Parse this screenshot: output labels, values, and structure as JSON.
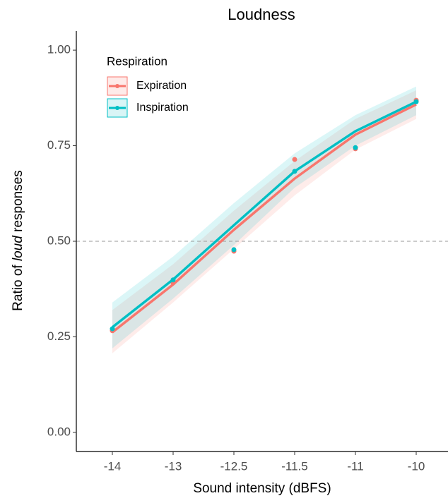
{
  "chart_data": {
    "type": "line",
    "title": "Loudness",
    "xlabel": "Sound intensity (dBFS)",
    "ylabel": [
      "Ratio of ",
      "loud",
      " responses"
    ],
    "categories": [
      "-14",
      "-13",
      "-12.5",
      "-11.5",
      "-11",
      "-10"
    ],
    "ylim": [
      -0.05,
      1.05
    ],
    "yticks": [
      {
        "value": 0,
        "label": "0.00"
      },
      {
        "value": 0.25,
        "label": "0.25"
      },
      {
        "value": 0.5,
        "label": "0.50"
      },
      {
        "value": 0.75,
        "label": "0.75"
      },
      {
        "value": 1,
        "label": "1.00"
      }
    ],
    "hline": 0.5,
    "legend_title": "Respiration",
    "legend": "top-left",
    "series": [
      {
        "name": "Expiration",
        "color": "#F8766D",
        "points": [
          0.266,
          0.391,
          0.474,
          0.714,
          0.742,
          0.869
        ],
        "fit": [
          0.262,
          0.387,
          0.53,
          0.664,
          0.779,
          0.858
        ],
        "lower": [
          0.207,
          0.34,
          0.48,
          0.62,
          0.74,
          0.82
        ],
        "upper": [
          0.32,
          0.44,
          0.58,
          0.71,
          0.82,
          0.895
        ]
      },
      {
        "name": "Inspiration",
        "color": "#00BFC4",
        "points": [
          0.271,
          0.399,
          0.478,
          0.683,
          0.745,
          0.865
        ],
        "fit": [
          0.275,
          0.4,
          0.542,
          0.683,
          0.788,
          0.865
        ],
        "lower": [
          0.22,
          0.35,
          0.49,
          0.64,
          0.75,
          0.83
        ],
        "upper": [
          0.34,
          0.46,
          0.6,
          0.73,
          0.83,
          0.905
        ]
      }
    ]
  }
}
